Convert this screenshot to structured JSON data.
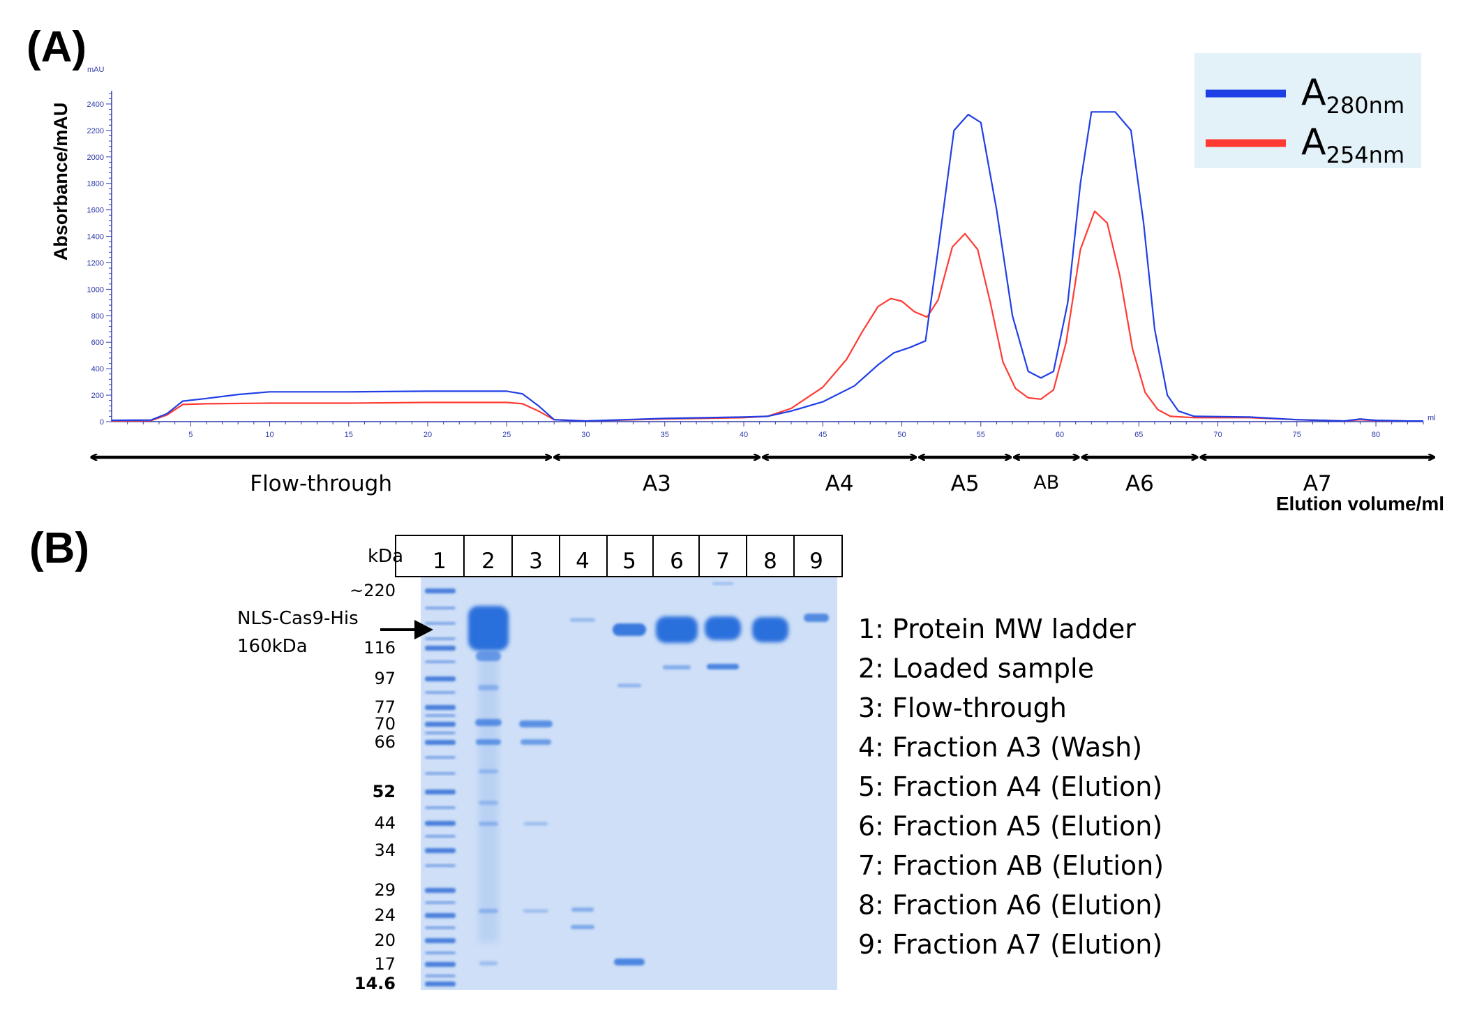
{
  "panel_a": {
    "label": "(A)",
    "chart_data": {
      "type": "line",
      "y_unit": "mAU",
      "x_unit": "ml",
      "ylabel": "Absorbance/mAU",
      "xlabel": "Elution volume/ml",
      "xlim": [
        0,
        83
      ],
      "ylim": [
        0,
        2500
      ],
      "x_ticks": [
        5,
        10,
        15,
        20,
        25,
        30,
        35,
        40,
        45,
        50,
        55,
        60,
        65,
        70,
        75,
        80
      ],
      "y_ticks": [
        0,
        200,
        400,
        600,
        800,
        1000,
        1200,
        1400,
        1600,
        1800,
        2000,
        2200,
        2400
      ],
      "legend_position": "top-right",
      "series": [
        {
          "name": "A280nm",
          "label_main": "A",
          "label_sub": "280nm",
          "color": "#1f3fe6",
          "points": [
            [
              0,
              10
            ],
            [
              2.5,
              12
            ],
            [
              3.5,
              60
            ],
            [
              4.5,
              155
            ],
            [
              6,
              175
            ],
            [
              8,
              205
            ],
            [
              10,
              225
            ],
            [
              15,
              225
            ],
            [
              20,
              230
            ],
            [
              25,
              230
            ],
            [
              26,
              210
            ],
            [
              27,
              120
            ],
            [
              28,
              15
            ],
            [
              30,
              5
            ],
            [
              35,
              25
            ],
            [
              40,
              35
            ],
            [
              41.5,
              40
            ],
            [
              43,
              80
            ],
            [
              45,
              150
            ],
            [
              47,
              270
            ],
            [
              48.5,
              430
            ],
            [
              49.5,
              520
            ],
            [
              50.5,
              560
            ],
            [
              51.5,
              610
            ],
            [
              52.3,
              1300
            ],
            [
              53.3,
              2200
            ],
            [
              54.2,
              2320
            ],
            [
              55,
              2260
            ],
            [
              56,
              1600
            ],
            [
              57,
              800
            ],
            [
              58,
              380
            ],
            [
              58.8,
              330
            ],
            [
              59.6,
              380
            ],
            [
              60.5,
              900
            ],
            [
              61.3,
              1800
            ],
            [
              62,
              2340
            ],
            [
              63.5,
              2340
            ],
            [
              64.5,
              2200
            ],
            [
              65.3,
              1500
            ],
            [
              66,
              700
            ],
            [
              66.8,
              200
            ],
            [
              67.5,
              80
            ],
            [
              68.5,
              40
            ],
            [
              72,
              35
            ],
            [
              75,
              15
            ],
            [
              78,
              5
            ],
            [
              79,
              20
            ],
            [
              80,
              10
            ],
            [
              82,
              5
            ],
            [
              83,
              5
            ]
          ]
        },
        {
          "name": "A254nm",
          "label_main": "A",
          "label_sub": "254nm",
          "color": "#ff3a33",
          "points": [
            [
              0,
              5
            ],
            [
              2.5,
              8
            ],
            [
              3.5,
              50
            ],
            [
              4.5,
              130
            ],
            [
              6,
              135
            ],
            [
              10,
              140
            ],
            [
              15,
              140
            ],
            [
              20,
              145
            ],
            [
              25,
              145
            ],
            [
              26,
              135
            ],
            [
              27,
              80
            ],
            [
              28,
              15
            ],
            [
              30,
              5
            ],
            [
              35,
              20
            ],
            [
              40,
              30
            ],
            [
              41.5,
              40
            ],
            [
              43,
              100
            ],
            [
              45,
              260
            ],
            [
              46.5,
              470
            ],
            [
              47.5,
              680
            ],
            [
              48.5,
              870
            ],
            [
              49.3,
              930
            ],
            [
              50,
              910
            ],
            [
              50.8,
              830
            ],
            [
              51.6,
              790
            ],
            [
              52.3,
              920
            ],
            [
              53.2,
              1320
            ],
            [
              54,
              1420
            ],
            [
              54.8,
              1300
            ],
            [
              55.6,
              900
            ],
            [
              56.4,
              450
            ],
            [
              57.2,
              250
            ],
            [
              58,
              180
            ],
            [
              58.8,
              170
            ],
            [
              59.6,
              240
            ],
            [
              60.4,
              600
            ],
            [
              61.3,
              1300
            ],
            [
              62.2,
              1590
            ],
            [
              63,
              1500
            ],
            [
              63.8,
              1100
            ],
            [
              64.6,
              550
            ],
            [
              65.4,
              220
            ],
            [
              66.2,
              90
            ],
            [
              67,
              40
            ],
            [
              68.5,
              30
            ],
            [
              72,
              30
            ],
            [
              75,
              15
            ],
            [
              78,
              5
            ],
            [
              79,
              15
            ],
            [
              80,
              8
            ],
            [
              82,
              5
            ],
            [
              83,
              5
            ]
          ]
        }
      ]
    },
    "fractions": [
      {
        "label": "Flow-through",
        "from": -1.4,
        "to": 27.9,
        "small": false
      },
      {
        "label": "A3",
        "from": 27.9,
        "to": 41.1,
        "small": false
      },
      {
        "label": "A4",
        "from": 41.1,
        "to": 51.0,
        "small": false
      },
      {
        "label": "A5",
        "from": 51.0,
        "to": 57.0,
        "small": false
      },
      {
        "label": "AB",
        "from": 57.0,
        "to": 61.3,
        "small": true
      },
      {
        "label": "A6",
        "from": 61.3,
        "to": 68.8,
        "small": false
      },
      {
        "label": "A7",
        "from": 68.8,
        "to": 85.0,
        "small": false
      }
    ]
  },
  "panel_b": {
    "label": "(B)",
    "kda_label": "kDa",
    "lanes": [
      "1",
      "2",
      "3",
      "4",
      "5",
      "6",
      "7",
      "8",
      "9"
    ],
    "markers": [
      {
        "label": "~220",
        "bold": false
      },
      {
        "label": "116",
        "bold": false
      },
      {
        "label": "97",
        "bold": false
      },
      {
        "label": "77",
        "bold": false
      },
      {
        "label": "70",
        "bold": false
      },
      {
        "label": "66",
        "bold": false
      },
      {
        "label": "52",
        "bold": true
      },
      {
        "label": "44",
        "bold": false
      },
      {
        "label": "34",
        "bold": false
      },
      {
        "label": "29",
        "bold": false
      },
      {
        "label": "24",
        "bold": false
      },
      {
        "label": "20",
        "bold": false
      },
      {
        "label": "17",
        "bold": false
      },
      {
        "label": "14.6",
        "bold": true
      }
    ],
    "annotation_line1": "NLS-Cas9-His",
    "annotation_line2": "160kDa",
    "key": [
      "1: Protein MW ladder",
      "2: Loaded sample",
      "3: Flow-through",
      "4: Fraction A3 (Wash)",
      "5: Fraction A4 (Elution)",
      "6: Fraction A5 (Elution)",
      "7: Fraction AB (Elution)",
      "8: Fraction A6 (Elution)",
      "9: Fraction A7 (Elution)"
    ]
  },
  "colors": {
    "legend_bg": "#e3f1f8",
    "axis_blue": "#2e3aa8",
    "gel_bg": "#c9dcf6",
    "band": "#2b6fdc"
  }
}
